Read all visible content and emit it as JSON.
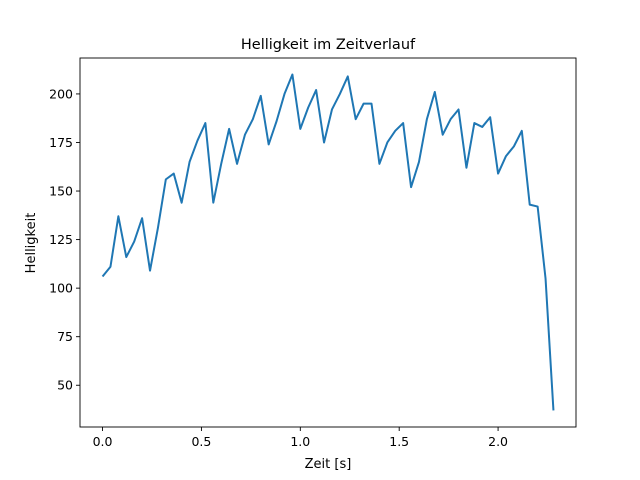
{
  "chart_data": {
    "type": "line",
    "title": "Helligkeit im Zeitverlauf",
    "xlabel": "Zeit [s]",
    "ylabel": "Helligkeit",
    "xlim": [
      -0.114,
      2.394
    ],
    "ylim": [
      28.5,
      218.5
    ],
    "xticks": [
      0.0,
      0.5,
      1.0,
      1.5,
      2.0
    ],
    "xtick_labels": [
      "0.0",
      "0.5",
      "1.0",
      "1.5",
      "2.0"
    ],
    "yticks": [
      50,
      75,
      100,
      125,
      150,
      175,
      200
    ],
    "ytick_labels": [
      "50",
      "75",
      "100",
      "125",
      "150",
      "175",
      "200"
    ],
    "grid": false,
    "legend": "none",
    "series": [
      {
        "color": "#1f77b4",
        "x": [
          0.0,
          0.04,
          0.08,
          0.12,
          0.16,
          0.2,
          0.24,
          0.28,
          0.32,
          0.36,
          0.4,
          0.44,
          0.48,
          0.52,
          0.56,
          0.6,
          0.64,
          0.68,
          0.72,
          0.76,
          0.8,
          0.84,
          0.88,
          0.92,
          0.96,
          1.0,
          1.04,
          1.08,
          1.12,
          1.16,
          1.2,
          1.24,
          1.28,
          1.32,
          1.36,
          1.4,
          1.44,
          1.48,
          1.52,
          1.56,
          1.6,
          1.64,
          1.68,
          1.72,
          1.76,
          1.8,
          1.84,
          1.88,
          1.92,
          1.96,
          2.0,
          2.04,
          2.08,
          2.12,
          2.16,
          2.2,
          2.24,
          2.28
        ],
        "y": [
          106,
          111,
          137,
          116,
          124,
          136,
          109,
          131,
          156,
          159,
          144,
          165,
          176,
          185,
          144,
          164,
          182,
          164,
          179,
          187,
          199,
          174,
          186,
          200,
          210,
          182,
          193,
          202,
          175,
          192,
          200,
          209,
          187,
          195,
          195,
          164,
          175,
          181,
          185,
          152,
          165,
          187,
          201,
          179,
          187,
          192,
          162,
          185,
          183,
          188,
          159,
          168,
          173,
          181,
          143,
          142,
          105,
          37
        ]
      }
    ]
  }
}
